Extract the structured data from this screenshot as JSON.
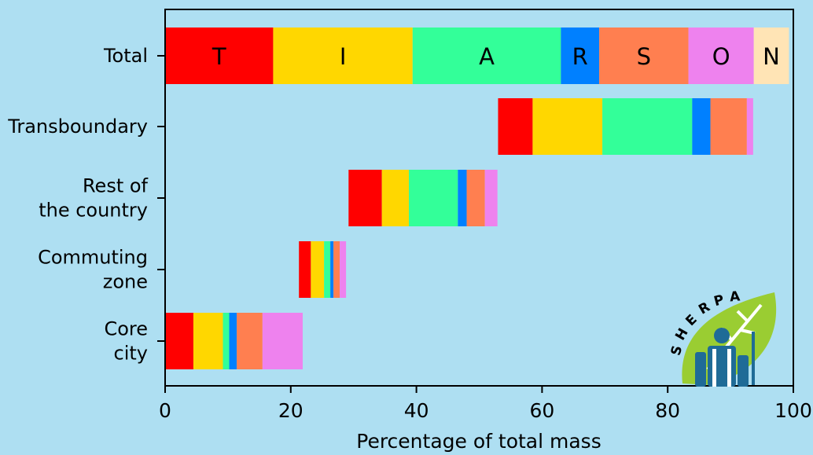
{
  "chart_data": {
    "type": "bar",
    "orientation": "horizontal",
    "stacked": true,
    "title": "",
    "xlabel": "Percentage of total mass",
    "ylabel": "",
    "xlim": [
      0,
      100
    ],
    "xticks": [
      0,
      20,
      40,
      60,
      80,
      100
    ],
    "categories": [
      "Total",
      "Transboundary",
      "Rest of the country",
      "Commuting zone",
      "Core city"
    ],
    "category_labels": [
      [
        "Total"
      ],
      [
        "Transboundary"
      ],
      [
        "Rest of",
        "the country"
      ],
      [
        "Commuting",
        "zone"
      ],
      [
        "Core",
        "city"
      ]
    ],
    "legend_placement": "inside-total-bar",
    "series": [
      {
        "name": "T",
        "color": "#ff0000",
        "values": [
          17.2,
          5.5,
          5.3,
          1.9,
          4.5
        ]
      },
      {
        "name": "I",
        "color": "#ffd700",
        "values": [
          22.2,
          11.1,
          4.3,
          2.1,
          4.7
        ]
      },
      {
        "name": "A",
        "color": "#33ff99",
        "values": [
          23.6,
          14.3,
          7.8,
          1.0,
          1.0
        ]
      },
      {
        "name": "R",
        "color": "#0080ff",
        "values": [
          6.1,
          2.9,
          1.4,
          0.5,
          1.2
        ]
      },
      {
        "name": "S",
        "color": "#ff7f50",
        "values": [
          14.2,
          5.8,
          2.9,
          1.0,
          4.1
        ]
      },
      {
        "name": "O",
        "color": "#ee82ee",
        "values": [
          10.4,
          1.0,
          2.0,
          1.0,
          6.4
        ]
      },
      {
        "name": "N",
        "color": "#ffe4b5",
        "values": [
          5.6,
          0,
          0,
          0,
          0
        ]
      }
    ],
    "offsets": [
      0,
      53.0,
      29.2,
      21.3,
      0
    ],
    "grid": false
  },
  "logo": {
    "text": "SHERPA"
  }
}
